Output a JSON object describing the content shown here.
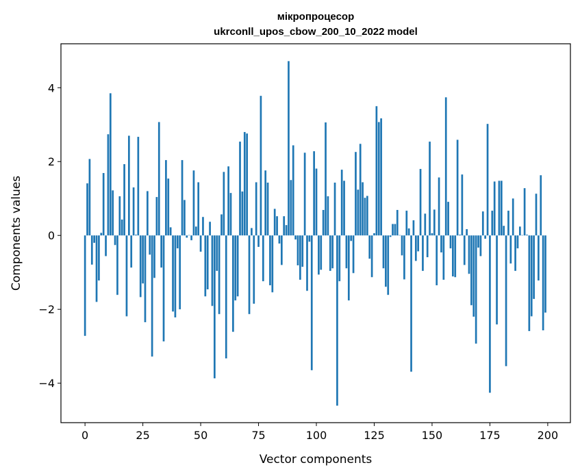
{
  "chart_data": {
    "type": "bar",
    "title_line1": "мікропроцесор",
    "title_line2": "ukrconll_upos_cbow_200_10_2022 model",
    "xlabel": "Vector components",
    "ylabel": "Components values",
    "xlim": [
      -10.4,
      209.8
    ],
    "ylim": [
      -5.07,
      5.19
    ],
    "xticks": [
      0,
      25,
      50,
      75,
      100,
      125,
      150,
      175,
      200
    ],
    "xtick_labels": [
      "0",
      "25",
      "50",
      "75",
      "100",
      "125",
      "150",
      "175",
      "200"
    ],
    "yticks": [
      -4,
      -2,
      0,
      2,
      4
    ],
    "ytick_labels": [
      "−4",
      "−2",
      "0",
      "2",
      "4"
    ],
    "bar_color": "#1f77b4",
    "grid": false,
    "values": [
      -2.72,
      1.41,
      2.07,
      -0.79,
      -0.2,
      -1.8,
      -1.22,
      0.07,
      1.69,
      -0.56,
      2.74,
      3.85,
      1.22,
      -0.26,
      -1.61,
      1.06,
      0.43,
      1.93,
      -2.19,
      2.7,
      -0.87,
      1.3,
      0.02,
      2.67,
      -1.67,
      -1.3,
      -2.35,
      1.2,
      -0.52,
      -3.28,
      -1.15,
      1.04,
      3.07,
      -0.87,
      -2.87,
      2.04,
      1.54,
      0.22,
      -2.06,
      -2.22,
      -0.35,
      -2.0,
      2.04,
      0.96,
      -0.06,
      0.01,
      -0.13,
      1.76,
      0.24,
      1.44,
      -0.44,
      0.5,
      -1.65,
      -1.46,
      0.37,
      -1.91,
      -3.87,
      -0.96,
      -2.13,
      0.57,
      1.72,
      -3.33,
      1.87,
      1.15,
      -2.61,
      -1.76,
      -1.65,
      2.54,
      1.19,
      2.8,
      2.76,
      -2.13,
      0.2,
      -1.85,
      1.44,
      -0.31,
      3.78,
      -1.24,
      1.76,
      1.43,
      -1.35,
      -1.54,
      0.72,
      0.52,
      -0.22,
      -0.8,
      0.52,
      0.28,
      4.72,
      1.5,
      2.44,
      -0.11,
      -0.81,
      -1.2,
      -0.85,
      2.24,
      -1.5,
      -0.17,
      -3.65,
      2.28,
      1.81,
      -1.06,
      -0.93,
      0.69,
      3.06,
      1.06,
      -0.96,
      -0.89,
      1.43,
      -4.61,
      -1.24,
      1.78,
      1.48,
      -0.89,
      -1.76,
      -0.15,
      -1.02,
      2.26,
      1.24,
      2.48,
      1.44,
      1.02,
      1.07,
      -0.63,
      -1.13,
      0.06,
      3.5,
      3.07,
      3.17,
      -0.89,
      -1.39,
      -1.61,
      -0.04,
      0.31,
      0.31,
      0.69,
      0.01,
      -0.54,
      -1.19,
      0.67,
      0.19,
      -3.69,
      0.41,
      -0.69,
      -0.43,
      1.8,
      -0.96,
      0.59,
      -0.59,
      2.54,
      0.06,
      0.7,
      -1.35,
      1.57,
      -0.46,
      -1.2,
      3.74,
      0.91,
      -0.35,
      -1.11,
      -1.13,
      2.59,
      0.02,
      1.65,
      -0.8,
      0.17,
      -1.04,
      -1.89,
      -2.2,
      -2.93,
      -0.33,
      -0.56,
      0.65,
      -0.09,
      3.02,
      -4.26,
      0.67,
      1.46,
      -2.41,
      1.48,
      1.48,
      0.26,
      -3.54,
      0.67,
      -0.76,
      1.0,
      -0.96,
      -0.35,
      0.24,
      0.01,
      1.28,
      0.02,
      -2.59,
      -2.19,
      -1.72,
      1.13,
      -1.22,
      1.63,
      -2.57,
      -2.09
    ]
  }
}
